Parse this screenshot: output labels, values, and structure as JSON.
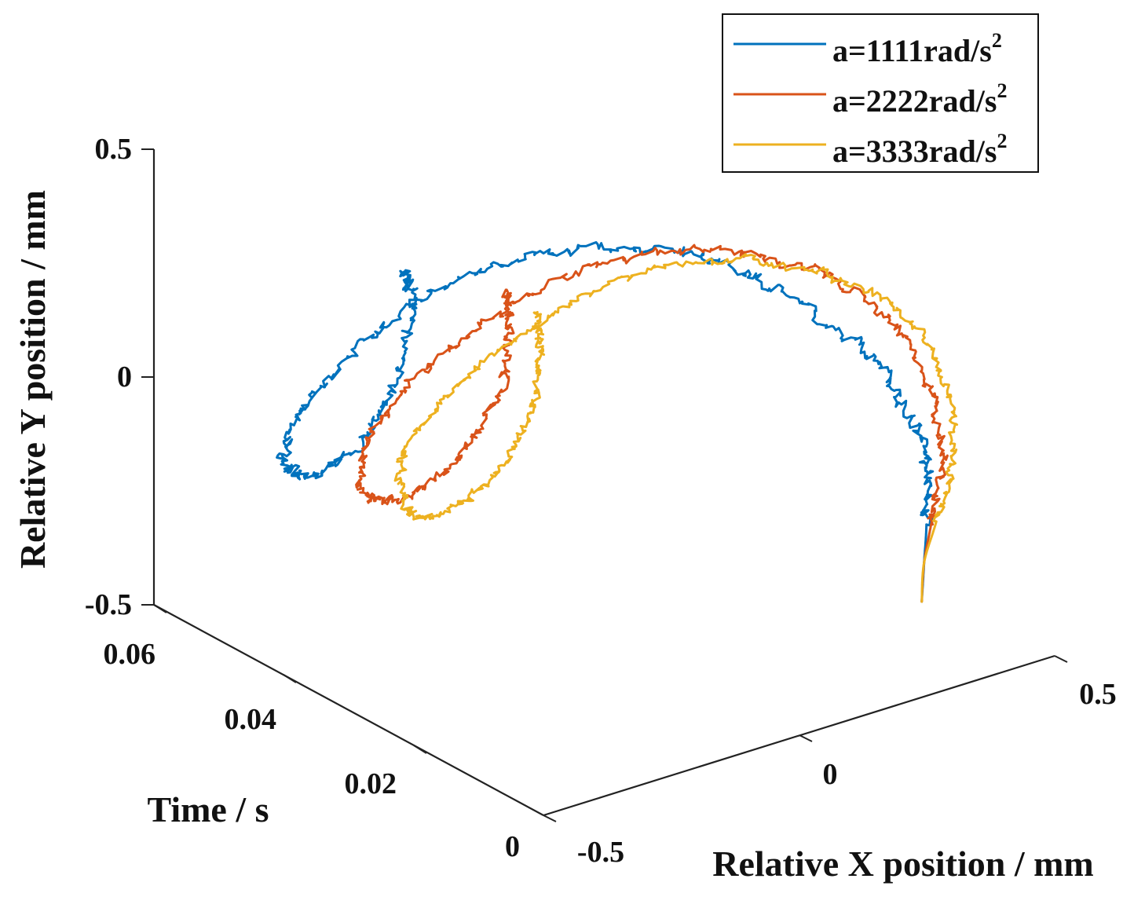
{
  "chart_data": {
    "type": "line",
    "projection": "3d",
    "xlabel": "Relative X position / mm",
    "ylabel": "Relative Y position / mm",
    "zlabel": "Time / s",
    "xlim": [
      -0.5,
      0.5
    ],
    "ylim": [
      -0.5,
      0.5
    ],
    "zlim": [
      0,
      0.06
    ],
    "x_ticks": [
      "-0.5",
      "0",
      "0.5"
    ],
    "y_ticks": [
      "-0.5",
      "0",
      "0.5"
    ],
    "z_ticks": [
      "0",
      "0.02",
      "0.04",
      "0.06"
    ],
    "legend_position": "top-right",
    "series": [
      {
        "name": "a=1111rad/s²",
        "label_main": "a=1111rad/s",
        "label_sup": "2",
        "color": "#0072BD",
        "noise": 0.018,
        "seed": 11,
        "points": [
          [
            0.24,
            -0.29,
            0.0
          ],
          [
            0.27,
            -0.23,
            0.002
          ],
          [
            0.3,
            -0.17,
            0.004
          ],
          [
            0.35,
            -0.1,
            0.008
          ],
          [
            0.36,
            0.0,
            0.012
          ],
          [
            0.32,
            0.12,
            0.016
          ],
          [
            0.22,
            0.24,
            0.02
          ],
          [
            0.1,
            0.33,
            0.024
          ],
          [
            -0.05,
            0.37,
            0.028
          ],
          [
            -0.2,
            0.35,
            0.032
          ],
          [
            -0.33,
            0.26,
            0.036
          ],
          [
            -0.41,
            0.12,
            0.04
          ],
          [
            -0.44,
            -0.02,
            0.044
          ],
          [
            -0.4,
            -0.14,
            0.047
          ],
          [
            -0.29,
            -0.2,
            0.05
          ],
          [
            -0.16,
            -0.17,
            0.053
          ],
          [
            -0.06,
            -0.08,
            0.056
          ],
          [
            -0.01,
            0.02,
            0.059
          ],
          [
            -0.01,
            0.06,
            0.06
          ]
        ]
      },
      {
        "name": "a=2222rad/s²",
        "label_main": "a=2222rad/s",
        "label_sup": "2",
        "color": "#D95319",
        "noise": 0.016,
        "seed": 23,
        "points": [
          [
            0.24,
            -0.29,
            0.0
          ],
          [
            0.27,
            -0.23,
            0.002
          ],
          [
            0.31,
            -0.17,
            0.004
          ],
          [
            0.38,
            -0.1,
            0.008
          ],
          [
            0.41,
            0.02,
            0.012
          ],
          [
            0.38,
            0.16,
            0.016
          ],
          [
            0.28,
            0.27,
            0.02
          ],
          [
            0.14,
            0.33,
            0.024
          ],
          [
            -0.02,
            0.33,
            0.028
          ],
          [
            -0.17,
            0.25,
            0.032
          ],
          [
            -0.28,
            0.12,
            0.036
          ],
          [
            -0.33,
            -0.03,
            0.04
          ],
          [
            -0.31,
            -0.17,
            0.043
          ],
          [
            -0.23,
            -0.26,
            0.046
          ],
          [
            -0.1,
            -0.29,
            0.049
          ],
          [
            0.02,
            -0.26,
            0.052
          ],
          [
            0.12,
            -0.18,
            0.055
          ],
          [
            0.17,
            -0.1,
            0.058
          ],
          [
            0.19,
            -0.05,
            0.06
          ]
        ]
      },
      {
        "name": "a=3333rad/s²",
        "label_main": "a=3333rad/s",
        "label_sup": "2",
        "color": "#EDB120",
        "noise": 0.014,
        "seed": 37,
        "points": [
          [
            0.24,
            -0.29,
            0.0
          ],
          [
            0.27,
            -0.23,
            0.002
          ],
          [
            0.32,
            -0.17,
            0.004
          ],
          [
            0.4,
            -0.1,
            0.008
          ],
          [
            0.44,
            0.02,
            0.012
          ],
          [
            0.41,
            0.15,
            0.016
          ],
          [
            0.31,
            0.25,
            0.02
          ],
          [
            0.17,
            0.3,
            0.024
          ],
          [
            0.02,
            0.28,
            0.028
          ],
          [
            -0.12,
            0.19,
            0.032
          ],
          [
            -0.22,
            0.06,
            0.036
          ],
          [
            -0.26,
            -0.09,
            0.04
          ],
          [
            -0.23,
            -0.23,
            0.043
          ],
          [
            -0.15,
            -0.32,
            0.046
          ],
          [
            -0.03,
            -0.35,
            0.049
          ],
          [
            0.09,
            -0.32,
            0.052
          ],
          [
            0.18,
            -0.25,
            0.055
          ],
          [
            0.23,
            -0.17,
            0.058
          ],
          [
            0.25,
            -0.12,
            0.06
          ]
        ]
      }
    ]
  }
}
